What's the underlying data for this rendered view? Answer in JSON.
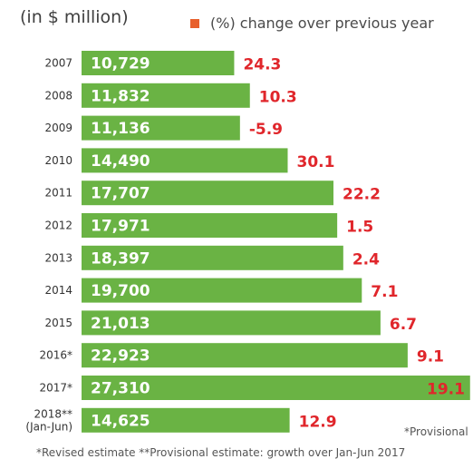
{
  "unit_label": "(in $ million)",
  "legend_label": "(%) change over previous year",
  "provisional_note": "*Provisional",
  "footnote": "*Revised estimate **Provisional estimate: growth over Jan-Jun 2017",
  "colors": {
    "bar": "#6ab344",
    "bar_text": "#ffffff",
    "change": "#e0262b",
    "legend_swatch": "#e8602c"
  },
  "chart_data": {
    "type": "bar",
    "orientation": "horizontal",
    "categories": [
      "2007",
      "2008",
      "2009",
      "2010",
      "2011",
      "2012",
      "2013",
      "2014",
      "2015",
      "2016*",
      "2017*",
      "2018**|(Jan-Jun)"
    ],
    "values": [
      10729,
      11832,
      11136,
      14490,
      17707,
      17971,
      18397,
      19700,
      21013,
      22923,
      27310,
      14625
    ],
    "value_labels": [
      "10,729",
      "11,832",
      "11,136",
      "14,490",
      "17,707",
      "17,971",
      "18,397",
      "19,700",
      "21,013",
      "22,923",
      "27,310",
      "14,625"
    ],
    "change_labels": [
      "24.3",
      "10.3",
      "-5.9",
      "30.1",
      "22.2",
      "1.5",
      "2.4",
      "7.1",
      "6.7",
      "9.1",
      "19.1",
      "12.9"
    ],
    "ylabel": "in $ million"
  }
}
